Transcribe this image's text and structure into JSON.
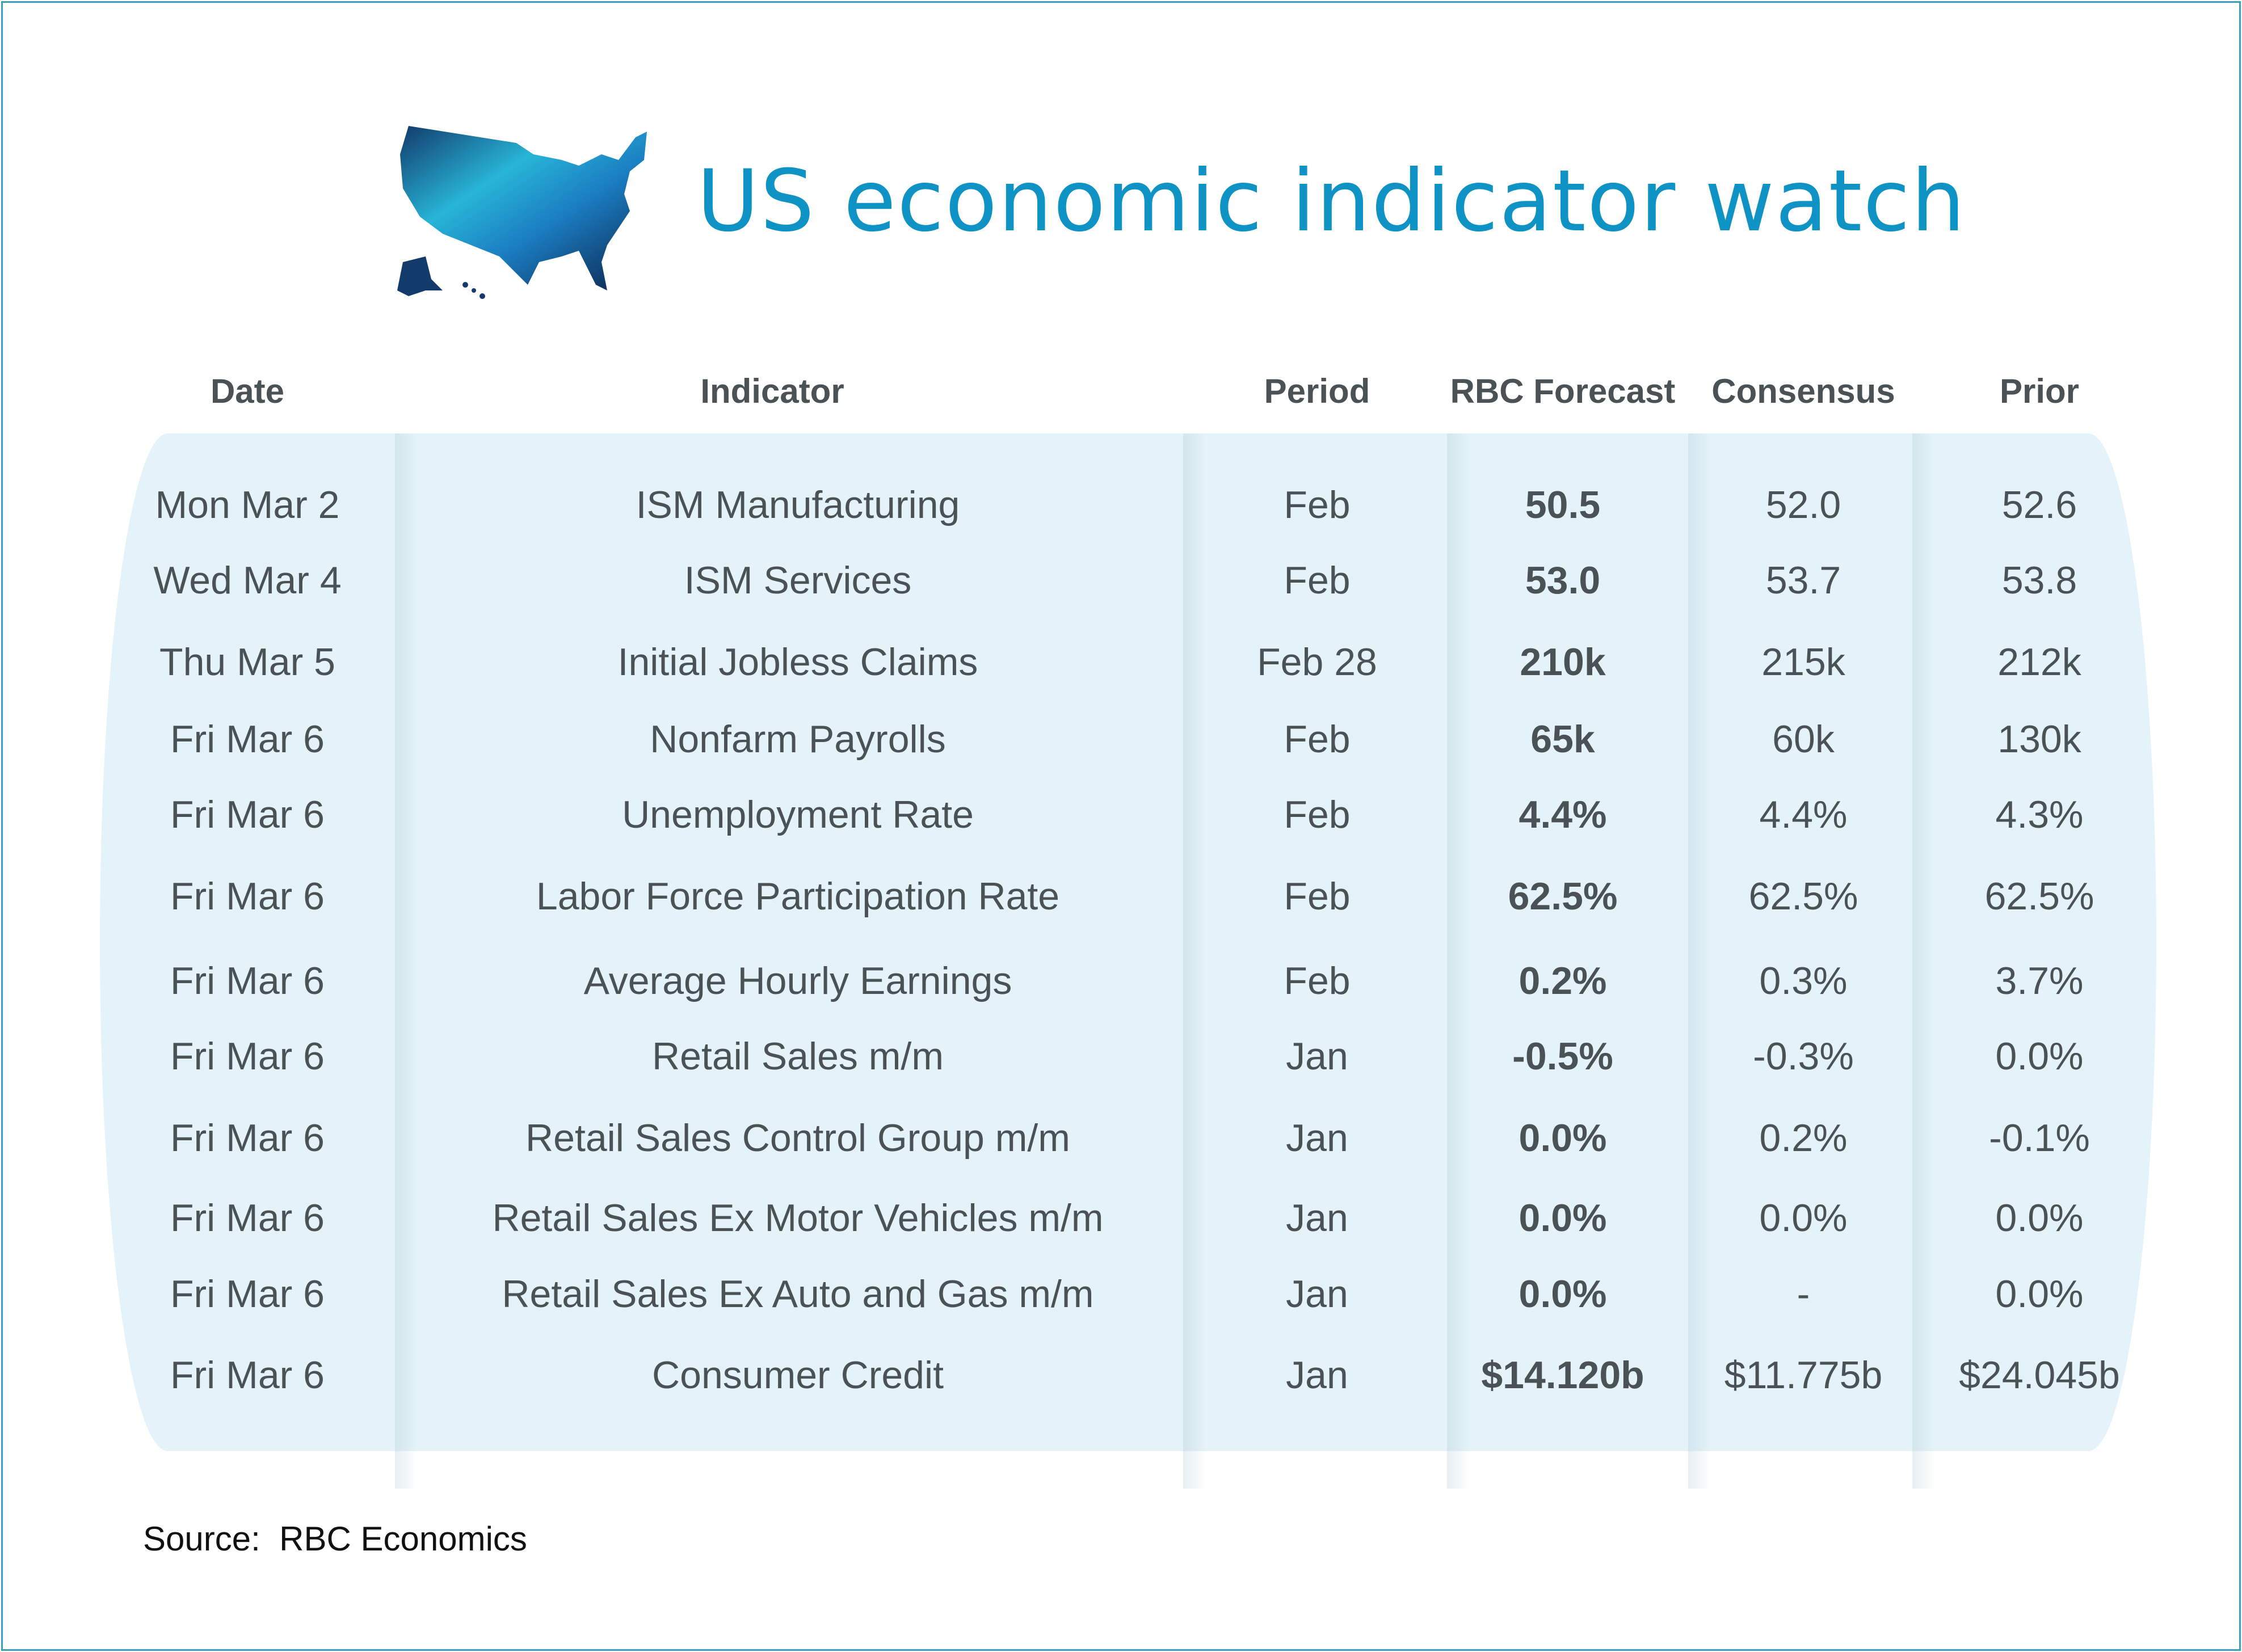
{
  "title": "US economic indicator watch",
  "headers": {
    "date": "Date",
    "indicator": "Indicator",
    "period": "Period",
    "rbc": "RBC Forecast",
    "consensus": "Consensus",
    "prior": "Prior"
  },
  "rows": [
    {
      "date": "Mon Mar 2",
      "indicator": "ISM Manufacturing",
      "period": "Feb",
      "rbc": "50.5",
      "consensus": "52.0",
      "prior": "52.6"
    },
    {
      "date": "Wed Mar 4",
      "indicator": "ISM Services",
      "period": "Feb",
      "rbc": "53.0",
      "consensus": "53.7",
      "prior": "53.8"
    },
    {
      "date": "Thu Mar 5",
      "indicator": "Initial Jobless Claims",
      "period": "Feb 28",
      "rbc": "210k",
      "consensus": "215k",
      "prior": "212k"
    },
    {
      "date": "Fri Mar 6",
      "indicator": "Nonfarm Payrolls",
      "period": "Feb",
      "rbc": "65k",
      "consensus": "60k",
      "prior": "130k"
    },
    {
      "date": "Fri Mar 6",
      "indicator": "Unemployment Rate",
      "period": "Feb",
      "rbc": "4.4%",
      "consensus": "4.4%",
      "prior": "4.3%"
    },
    {
      "date": "Fri Mar 6",
      "indicator": "Labor Force Participation Rate",
      "period": "Feb",
      "rbc": "62.5%",
      "consensus": "62.5%",
      "prior": "62.5%"
    },
    {
      "date": "Fri Mar 6",
      "indicator": "Average Hourly Earnings",
      "period": "Feb",
      "rbc": "0.2%",
      "consensus": "0.3%",
      "prior": "3.7%"
    },
    {
      "date": "Fri Mar 6",
      "indicator": "Retail Sales m/m",
      "period": "Jan",
      "rbc": "-0.5%",
      "consensus": "-0.3%",
      "prior": "0.0%"
    },
    {
      "date": "Fri Mar 6",
      "indicator": "Retail Sales Control Group m/m",
      "period": "Jan",
      "rbc": "0.0%",
      "consensus": "0.2%",
      "prior": "-0.1%"
    },
    {
      "date": "Fri Mar 6",
      "indicator": "Retail Sales Ex Motor Vehicles m/m",
      "period": "Jan",
      "rbc": "0.0%",
      "consensus": "0.0%",
      "prior": "0.0%"
    },
    {
      "date": "Fri Mar 6",
      "indicator": "Retail Sales Ex Auto and Gas m/m",
      "period": "Jan",
      "rbc": "0.0%",
      "consensus": "-",
      "prior": "0.0%"
    },
    {
      "date": "Fri Mar 6",
      "indicator": "Consumer Credit",
      "period": "Jan",
      "rbc": "$14.120b",
      "consensus": "$11.775b",
      "prior": "$24.045b"
    }
  ],
  "source": "Source:  RBC Economics",
  "colors": {
    "title": "#0f93c4",
    "text": "#4a5256",
    "panel": "#e4f3f9",
    "border": "#3a9fb8"
  }
}
